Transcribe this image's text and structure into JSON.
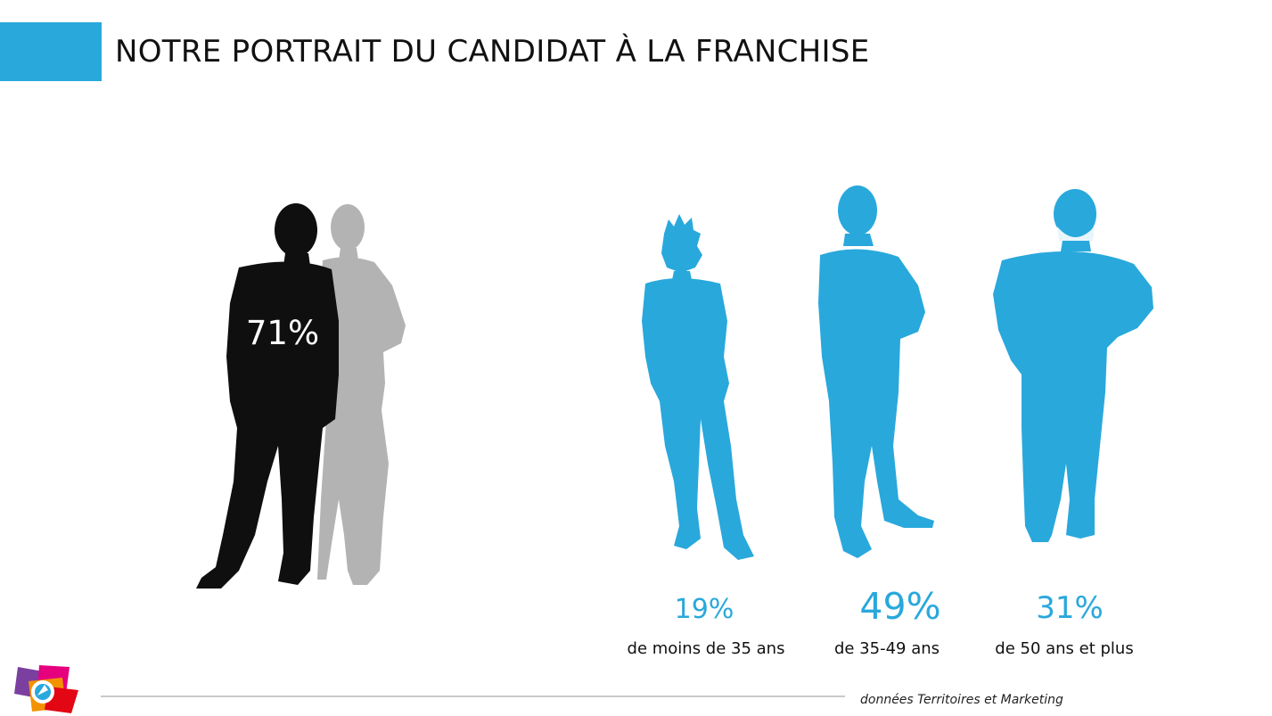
{
  "title": "NOTRE PORTRAIT DU CANDIDAT À LA FRANCHISE",
  "gender": {
    "male_percent_label": "71%"
  },
  "age_groups": [
    {
      "percent": "19%",
      "label": "de moins de 35 ans"
    },
    {
      "percent": "49%",
      "label": "de 35-49 ans"
    },
    {
      "percent": "31%",
      "label": "de 50 ans et plus"
    }
  ],
  "source": "données Territoires et Marketing",
  "colors": {
    "accent": "#29a8dc",
    "male": "#0f0f0f",
    "female": "#b3b3b3",
    "text": "#111111"
  }
}
